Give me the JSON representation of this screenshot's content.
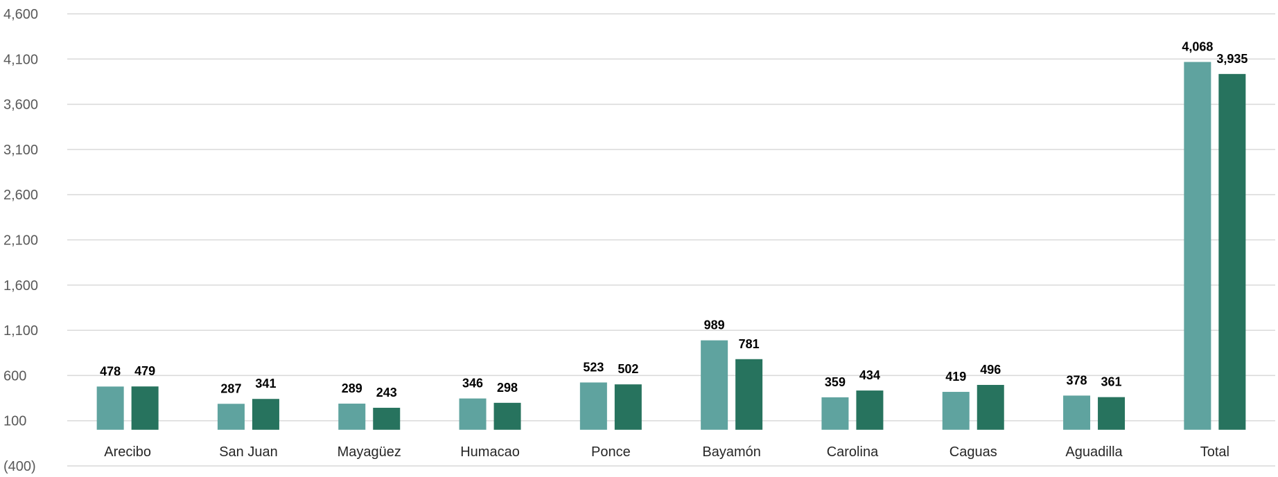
{
  "chart_data": {
    "type": "bar",
    "title": "",
    "xlabel": "",
    "ylabel": "",
    "categories": [
      "Arecibo",
      "San Juan",
      "Mayagüez",
      "Humacao",
      "Ponce",
      "Bayamón",
      "Carolina",
      "Caguas",
      "Aguadilla",
      "Total"
    ],
    "series": [
      {
        "values": [
          478,
          287,
          289,
          346,
          523,
          989,
          359,
          419,
          378,
          4068
        ],
        "labels": [
          "478",
          "287",
          "289",
          "346",
          "523",
          "989",
          "359",
          "419",
          "378",
          "4,068"
        ],
        "color": "#5fa39f"
      },
      {
        "values": [
          479,
          341,
          243,
          298,
          502,
          781,
          434,
          496,
          361,
          3935
        ],
        "labels": [
          "479",
          "341",
          "243",
          "298",
          "502",
          "781",
          "434",
          "496",
          "361",
          "3,935"
        ],
        "color": "#27735e"
      }
    ],
    "ylim": [
      -400,
      4600
    ],
    "baseline": 0,
    "yticks": [
      -400,
      100,
      600,
      1100,
      1600,
      2100,
      2600,
      3100,
      3600,
      4100,
      4600
    ],
    "ytick_labels": [
      "(400)",
      "100",
      "600",
      "1,100",
      "1,600",
      "2,100",
      "2,600",
      "3,100",
      "3,600",
      "4,100",
      "4,600"
    ],
    "grid": true,
    "legend": "none"
  }
}
